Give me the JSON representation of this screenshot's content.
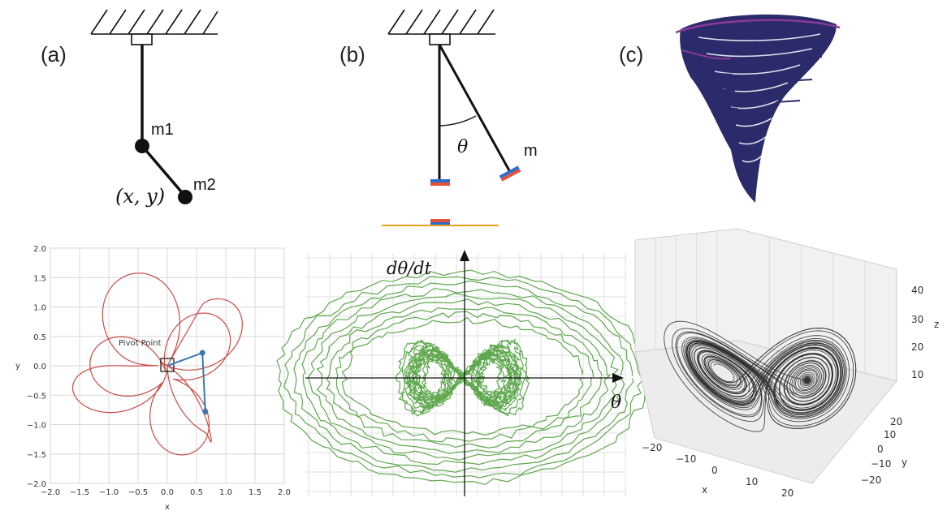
{
  "panels": {
    "a": {
      "label": "(a)",
      "mass1_label": "m1",
      "mass2_label": "m2",
      "coord_label": "(x, y)"
    },
    "b": {
      "label": "(b)",
      "angle_label": "θ",
      "mass_label": "m"
    },
    "c": {
      "label": "(c)"
    }
  },
  "colors": {
    "trajectory": "#c84b45",
    "phase": "#5fa84e",
    "lorenz": "#111111",
    "tornado": "#2b2b6b",
    "tornado_accent": "#8a3a9a",
    "pendulum_arm": "#3a78b5",
    "bob_red": "#e8503a",
    "bob_blue": "#2a6fd0",
    "ground": "#e8a020"
  },
  "icons": {
    "tornado": "tornado-icon"
  },
  "chart_data": [
    {
      "type": "line",
      "xlabel": "x",
      "ylabel": "y",
      "xlim": [
        -2.0,
        2.0
      ],
      "ylim": [
        -2.0,
        2.0
      ],
      "xticks": [
        "−2.0",
        "−1.5",
        "−1.0",
        "−0.5",
        "0.0",
        "0.5",
        "1.0",
        "1.5",
        "2.0"
      ],
      "yticks": [
        "2.0",
        "1.5",
        "1.0",
        "0.5",
        "0.0",
        "−0.5",
        "−1.0",
        "−1.5",
        "−2.0"
      ],
      "grid": true,
      "annotation": "Pivot Point",
      "arm_points": [
        [
          0.0,
          0.0
        ],
        [
          0.6,
          0.22
        ],
        [
          0.65,
          -0.78
        ]
      ]
    },
    {
      "type": "line",
      "xlabel": "θ",
      "ylabel": "dθ/dt",
      "grid": true
    },
    {
      "type": "line",
      "xlabel": "x",
      "ylabel": "y",
      "zlabel": "z",
      "xticks": [
        "−20",
        "−10",
        "0",
        "10",
        "20"
      ],
      "yticks": [
        "20",
        "10",
        "0",
        "−10",
        "−20"
      ],
      "zticks": [
        "40",
        "30",
        "20",
        "10"
      ],
      "grid": true
    }
  ]
}
